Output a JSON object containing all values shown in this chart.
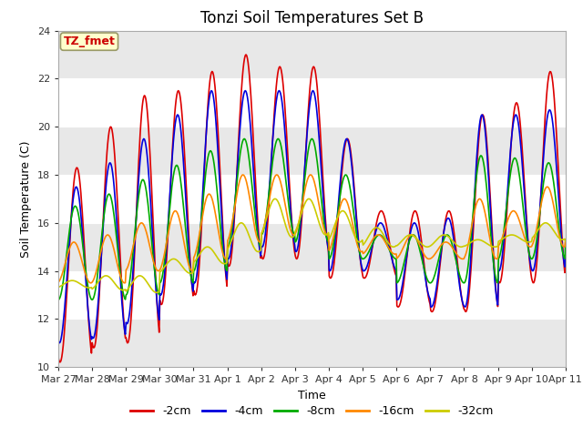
{
  "title": "Tonzi Soil Temperatures Set B",
  "xlabel": "Time",
  "ylabel": "Soil Temperature (C)",
  "ylim": [
    10,
    24
  ],
  "yticks": [
    10,
    12,
    14,
    16,
    18,
    20,
    22,
    24
  ],
  "annotation_text": "TZ_fmet",
  "annotation_bg": "#ffffcc",
  "annotation_border": "#999966",
  "annotation_fg": "#cc0000",
  "fig_bg": "#ffffff",
  "plot_bg": "#ffffff",
  "band_color": "#e8e8e8",
  "x_tick_labels": [
    "Mar 27",
    "Mar 28",
    "Mar 29",
    "Mar 30",
    "Mar 31",
    "Apr 1",
    "Apr 2",
    "Apr 3",
    "Apr 4",
    "Apr 5",
    "Apr 6",
    "Apr 7",
    "Apr 8",
    "Apr 9",
    "Apr 10",
    "Apr 11"
  ],
  "legend_labels": [
    "-2cm",
    "-4cm",
    "-8cm",
    "-16cm",
    "-32cm"
  ],
  "legend_colors": [
    "#dd0000",
    "#0000dd",
    "#00aa00",
    "#ff8800",
    "#cccc00"
  ],
  "series_colors": [
    "#dd0000",
    "#0000dd",
    "#00aa00",
    "#ff8800",
    "#cccc00"
  ],
  "peaks_2cm": [
    18.3,
    20.0,
    21.3,
    21.5,
    22.3,
    23.0,
    22.5,
    22.5,
    19.5,
    16.5,
    16.5,
    16.5,
    20.5,
    21.0,
    22.3,
    15.5
  ],
  "troughs_2cm": [
    10.2,
    10.8,
    11.0,
    12.6,
    13.0,
    14.2,
    14.5,
    14.5,
    13.7,
    13.7,
    12.5,
    12.3,
    12.3,
    13.5,
    13.5,
    14.2
  ],
  "peaks_4cm": [
    17.5,
    18.5,
    19.5,
    20.5,
    21.5,
    21.5,
    21.5,
    21.5,
    19.5,
    16.0,
    16.0,
    16.2,
    20.5,
    20.5,
    20.7,
    15.5
  ],
  "troughs_4cm": [
    11.0,
    11.2,
    11.8,
    13.0,
    13.5,
    14.5,
    15.0,
    14.8,
    14.0,
    14.0,
    12.8,
    12.5,
    12.5,
    14.0,
    14.0,
    14.5
  ],
  "peaks_8cm": [
    16.7,
    17.2,
    17.8,
    18.4,
    19.0,
    19.5,
    19.5,
    19.5,
    18.0,
    15.5,
    15.5,
    15.5,
    18.8,
    18.7,
    18.5,
    16.0
  ],
  "troughs_8cm": [
    12.8,
    12.8,
    13.0,
    13.5,
    14.0,
    15.0,
    15.5,
    15.2,
    14.5,
    14.5,
    13.5,
    13.5,
    13.5,
    14.5,
    14.5,
    15.2
  ],
  "peaks_16cm": [
    15.2,
    15.5,
    16.0,
    16.5,
    17.2,
    18.0,
    18.0,
    18.0,
    17.0,
    15.5,
    15.5,
    15.2,
    17.0,
    16.5,
    17.5,
    15.8
  ],
  "troughs_16cm": [
    13.5,
    13.5,
    14.0,
    14.0,
    14.5,
    15.2,
    15.5,
    15.5,
    14.8,
    14.7,
    14.5,
    14.5,
    14.5,
    15.0,
    15.0,
    15.3
  ],
  "peaks_32cm": [
    13.6,
    13.8,
    13.8,
    14.5,
    15.0,
    16.0,
    17.0,
    17.0,
    16.5,
    15.8,
    15.5,
    15.5,
    15.3,
    15.5,
    16.0,
    15.5
  ],
  "troughs_32cm": [
    13.3,
    13.2,
    13.1,
    13.9,
    14.3,
    14.8,
    15.4,
    15.5,
    15.2,
    15.0,
    15.0,
    15.0,
    15.0,
    15.2,
    15.3,
    15.2
  ]
}
